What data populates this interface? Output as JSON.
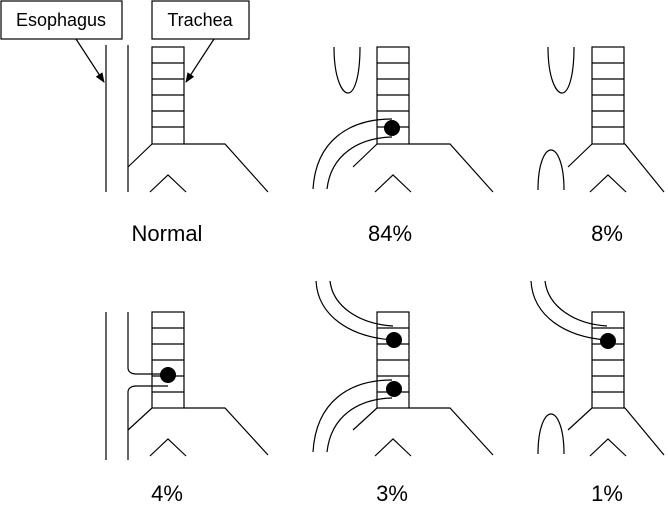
{
  "labels": {
    "esophagus": "Esophagus",
    "trachea": "Trachea"
  },
  "panels": [
    {
      "caption": "Normal"
    },
    {
      "caption": "84%"
    },
    {
      "caption": "8%"
    },
    {
      "caption": "4%"
    },
    {
      "caption": "3%"
    },
    {
      "caption": "1%"
    }
  ]
}
